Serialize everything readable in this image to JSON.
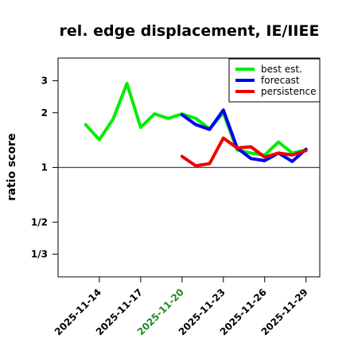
{
  "chart_data": {
    "type": "line",
    "title": "rel. edge displacement, IE/IIEE",
    "ylabel": "ratio score",
    "yscale": "log",
    "ylim": [
      0.25,
      4
    ],
    "y_ticks": [
      {
        "value": 3,
        "label": "3"
      },
      {
        "value": 2,
        "label": "2"
      },
      {
        "value": 1,
        "label": "1"
      },
      {
        "value": 0.5,
        "label": "1/2"
      },
      {
        "value": 0.3333,
        "label": "1/3"
      }
    ],
    "reference_line": 1,
    "x_range": [
      "2025-11-11",
      "2025-11-30"
    ],
    "x_ticks": [
      {
        "date": "2025-11-14",
        "label": "2025-11-14",
        "color": "#000000"
      },
      {
        "date": "2025-11-17",
        "label": "2025-11-17",
        "color": "#000000"
      },
      {
        "date": "2025-11-20",
        "label": "2025-11-20",
        "color": "#228B22"
      },
      {
        "date": "2025-11-23",
        "label": "2025-11-23",
        "color": "#000000"
      },
      {
        "date": "2025-11-26",
        "label": "2025-11-26",
        "color": "#000000"
      },
      {
        "date": "2025-11-29",
        "label": "2025-11-29",
        "color": "#000000"
      }
    ],
    "legend_position": "top-right",
    "series": [
      {
        "name": "best est.",
        "color": "#00ee00",
        "points": [
          [
            "2025-11-13",
            1.72
          ],
          [
            "2025-11-14",
            1.42
          ],
          [
            "2025-11-15",
            1.85
          ],
          [
            "2025-11-16",
            2.9
          ],
          [
            "2025-11-17",
            1.66
          ],
          [
            "2025-11-18",
            1.97
          ],
          [
            "2025-11-19",
            1.86
          ],
          [
            "2025-11-20",
            1.97
          ],
          [
            "2025-11-21",
            1.86
          ],
          [
            "2025-11-22",
            1.63
          ],
          [
            "2025-11-23",
            2.0
          ],
          [
            "2025-11-24",
            1.25
          ],
          [
            "2025-11-25",
            1.2
          ],
          [
            "2025-11-26",
            1.17
          ],
          [
            "2025-11-27",
            1.38
          ],
          [
            "2025-11-28",
            1.2
          ],
          [
            "2025-11-29",
            1.25
          ]
        ]
      },
      {
        "name": "forecast",
        "color": "#0000ee",
        "points": [
          [
            "2025-11-20",
            1.95
          ],
          [
            "2025-11-21",
            1.72
          ],
          [
            "2025-11-22",
            1.62
          ],
          [
            "2025-11-23",
            2.07
          ],
          [
            "2025-11-24",
            1.28
          ],
          [
            "2025-11-25",
            1.12
          ],
          [
            "2025-11-26",
            1.09
          ],
          [
            "2025-11-27",
            1.2
          ],
          [
            "2025-11-28",
            1.08
          ],
          [
            "2025-11-29",
            1.26
          ]
        ]
      },
      {
        "name": "persistence",
        "color": "#ee0000",
        "points": [
          [
            "2025-11-20",
            1.15
          ],
          [
            "2025-11-21",
            1.02
          ],
          [
            "2025-11-22",
            1.05
          ],
          [
            "2025-11-23",
            1.45
          ],
          [
            "2025-11-24",
            1.28
          ],
          [
            "2025-11-25",
            1.3
          ],
          [
            "2025-11-26",
            1.14
          ],
          [
            "2025-11-27",
            1.2
          ],
          [
            "2025-11-28",
            1.17
          ],
          [
            "2025-11-29",
            1.24
          ]
        ]
      }
    ]
  }
}
